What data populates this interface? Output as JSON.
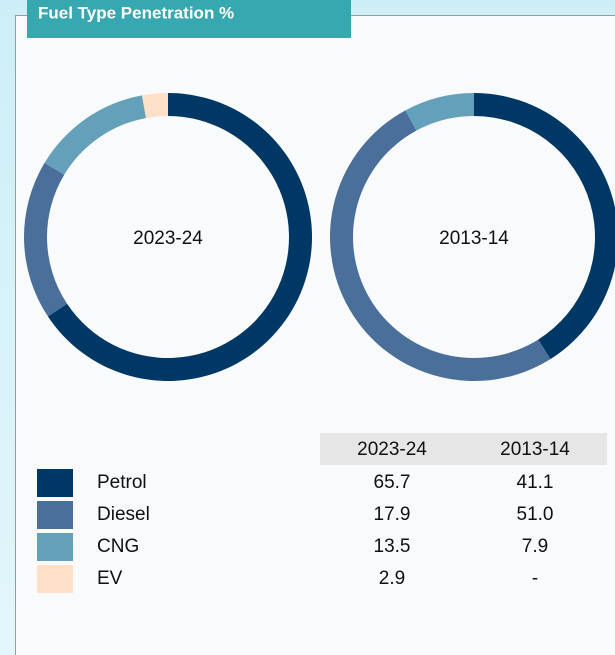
{
  "title": "Fuel Type Penetration %",
  "chart_data": [
    {
      "type": "pie",
      "donut": true,
      "title": "2023-24",
      "categories": [
        "Petrol",
        "Diesel",
        "CNG",
        "EV"
      ],
      "colors": [
        "#003865",
        "#4a6f9a",
        "#65a0ba",
        "#fde0c5"
      ],
      "values": [
        65.7,
        17.9,
        13.5,
        2.9
      ]
    },
    {
      "type": "pie",
      "donut": true,
      "title": "2013-14",
      "categories": [
        "Petrol",
        "Diesel",
        "CNG",
        "EV"
      ],
      "colors": [
        "#003865",
        "#4a6f9a",
        "#65a0ba",
        "#fde0c5"
      ],
      "values": [
        41.1,
        51,
        7.9,
        null
      ],
      "value_labels": [
        "41.1",
        "51.0",
        "7.9",
        "-"
      ]
    }
  ]
}
